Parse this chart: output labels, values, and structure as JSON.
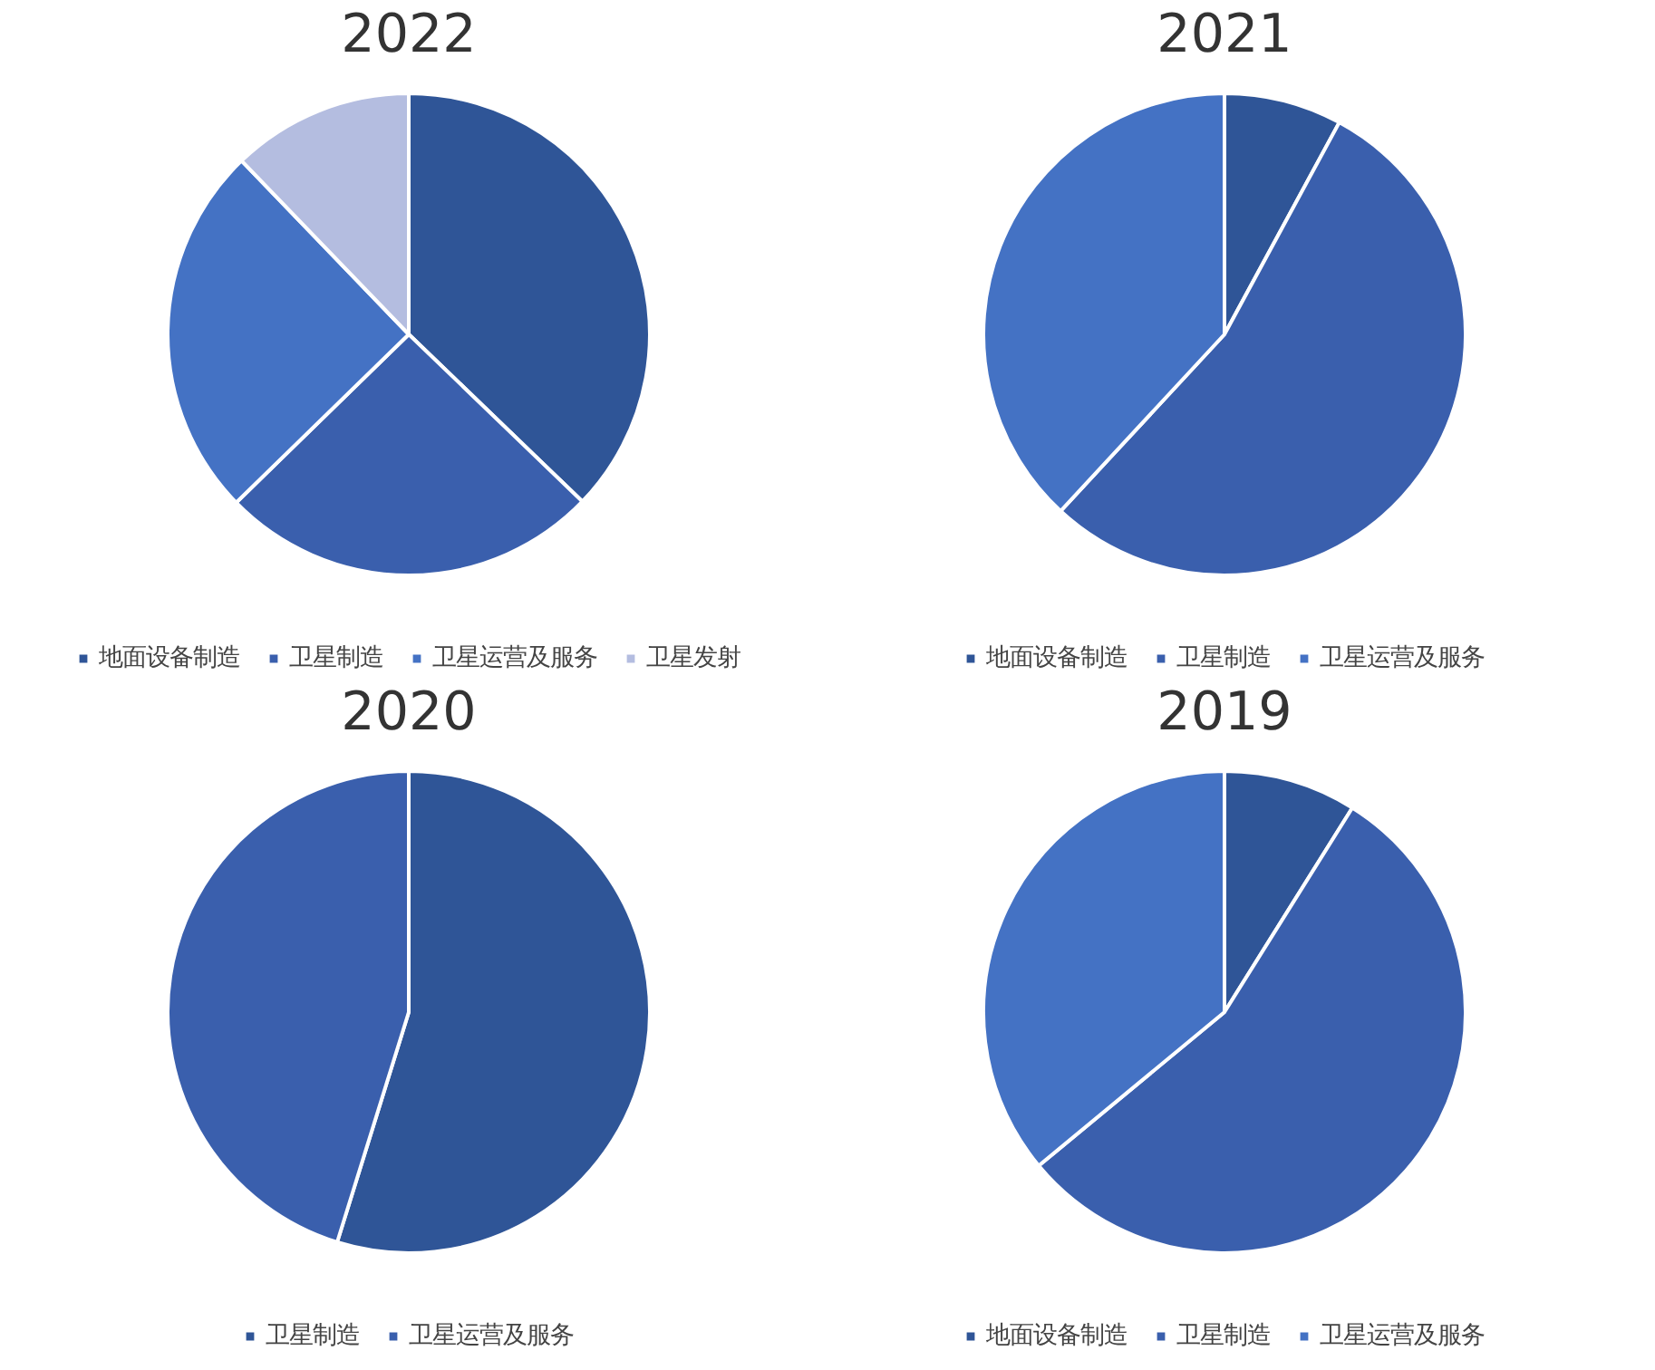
{
  "chart_data": [
    {
      "type": "pie",
      "title": "2022",
      "categories": [
        "地面设备制造",
        "卫星制造",
        "卫星运营及服务",
        "卫星发射"
      ],
      "values": [
        37.2,
        25.5,
        25.1,
        12.2
      ],
      "colors": [
        "#2f5597",
        "#3a5fad",
        "#4472c4",
        "#b4bde0"
      ],
      "legend": "bottom"
    },
    {
      "type": "pie",
      "title": "2021",
      "categories": [
        "地面设备制造",
        "卫星制造",
        "卫星运营及服务"
      ],
      "values": [
        7.9,
        54.0,
        38.1
      ],
      "colors": [
        "#2f5597",
        "#3a5fad",
        "#4472c4"
      ],
      "legend": "bottom"
    },
    {
      "type": "pie",
      "title": "2020",
      "categories": [
        "卫星制造",
        "卫星运营及服务"
      ],
      "values": [
        54.8,
        45.2
      ],
      "colors": [
        "#2f5597",
        "#3a5fad"
      ],
      "legend": "bottom"
    },
    {
      "type": "pie",
      "title": "2019",
      "categories": [
        "地面设备制造",
        "卫星制造",
        "卫星运营及服务"
      ],
      "values": [
        8.9,
        55.1,
        36.0
      ],
      "colors": [
        "#2f5597",
        "#3a5fad",
        "#4472c4"
      ],
      "legend": "bottom"
    }
  ]
}
